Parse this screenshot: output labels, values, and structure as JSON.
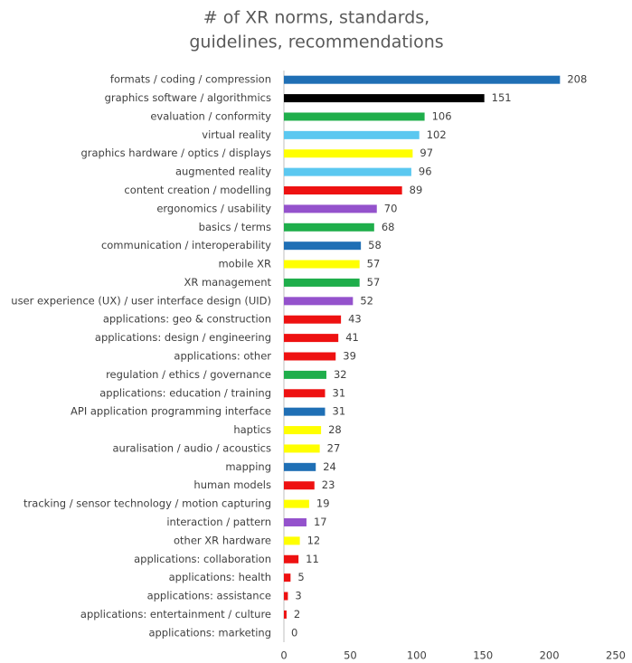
{
  "chart_data": {
    "type": "barh",
    "title": [
      "# of XR norms, standards,",
      "guidelines, recommendations"
    ],
    "categories": [
      "formats / coding / compression",
      "graphics software / algorithmics",
      "evaluation / conformity",
      "virtual reality",
      "graphics hardware / optics / displays",
      "augmented reality",
      "content creation / modelling",
      "ergonomics / usability",
      "basics / terms",
      "communication / interoperability",
      "mobile XR",
      "XR management",
      "user experience (UX) / user interface design (UID)",
      "applications: geo & construction",
      "applications: design / engineering",
      "applications: other",
      "regulation / ethics / governance",
      "applications: education / training",
      "API application programming interface",
      "haptics",
      "auralisation / audio / acoustics",
      "mapping",
      "human models",
      "tracking / sensor technology / motion capturing",
      "interaction / pattern",
      "other XR hardware",
      "applications: collaboration",
      "applications: health",
      "applications: assistance",
      "applications: entertainment / culture",
      "applications: marketing"
    ],
    "values": [
      208,
      151,
      106,
      102,
      97,
      96,
      89,
      70,
      68,
      58,
      57,
      57,
      52,
      43,
      41,
      39,
      32,
      31,
      31,
      28,
      27,
      24,
      23,
      19,
      17,
      12,
      11,
      5,
      3,
      2,
      0
    ],
    "colors": [
      "#1f6fb5",
      "#000000",
      "#1fae4b",
      "#5bc8f0",
      "#ffff00",
      "#5bc8f0",
      "#ee1111",
      "#9452cc",
      "#1fae4b",
      "#1f6fb5",
      "#ffff00",
      "#1fae4b",
      "#9452cc",
      "#ee1111",
      "#ee1111",
      "#ee1111",
      "#1fae4b",
      "#ee1111",
      "#1f6fb5",
      "#ffff00",
      "#ffff00",
      "#1f6fb5",
      "#ee1111",
      "#ffff00",
      "#9452cc",
      "#ffff00",
      "#ee1111",
      "#ee1111",
      "#ee1111",
      "#ee1111",
      "#ee1111"
    ],
    "xlim": [
      0,
      250
    ],
    "xticks": [
      0,
      50,
      100,
      150,
      200,
      250
    ],
    "grid": false
  }
}
